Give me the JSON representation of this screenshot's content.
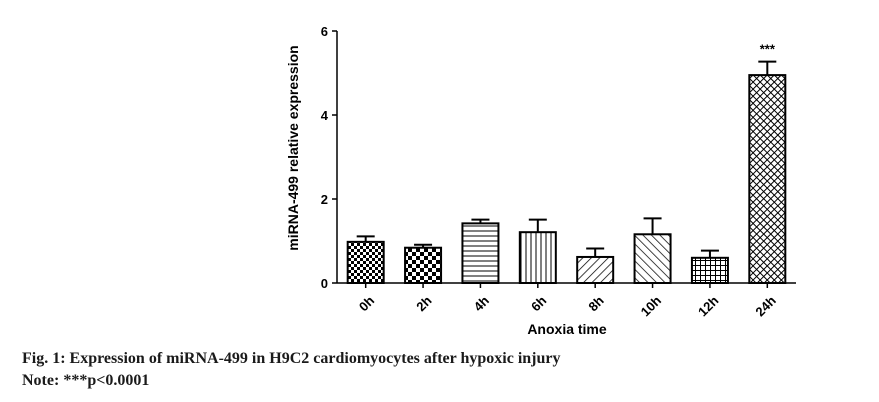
{
  "caption": {
    "figure": "Fig. 1: Expression of miRNA-499 in H9C2 cardiomyocytes after hypoxic injury",
    "note": "Note: ***p<0.0001"
  },
  "chart_data": {
    "type": "bar",
    "title": "",
    "xlabel": "Anoxia time",
    "ylabel": "miRNA-499 relative expression",
    "categories": [
      "0h",
      "2h",
      "4h",
      "6h",
      "8h",
      "10h",
      "12h",
      "24h"
    ],
    "values": [
      0.98,
      0.84,
      1.42,
      1.21,
      0.62,
      1.16,
      0.6,
      4.95
    ],
    "errors": [
      0.13,
      0.07,
      0.09,
      0.3,
      0.2,
      0.38,
      0.17,
      0.32
    ],
    "patterns": [
      "checker-small",
      "checker-large",
      "horizontal-lines",
      "vertical-lines",
      "diagonal-right",
      "diagonal-left",
      "grid",
      "cross-hatch"
    ],
    "annotations": [
      {
        "category": "24h",
        "text": "***"
      }
    ],
    "ylim": [
      0,
      6
    ],
    "yticks": [
      0,
      2,
      4,
      6
    ],
    "grid": false,
    "legend": "none"
  }
}
